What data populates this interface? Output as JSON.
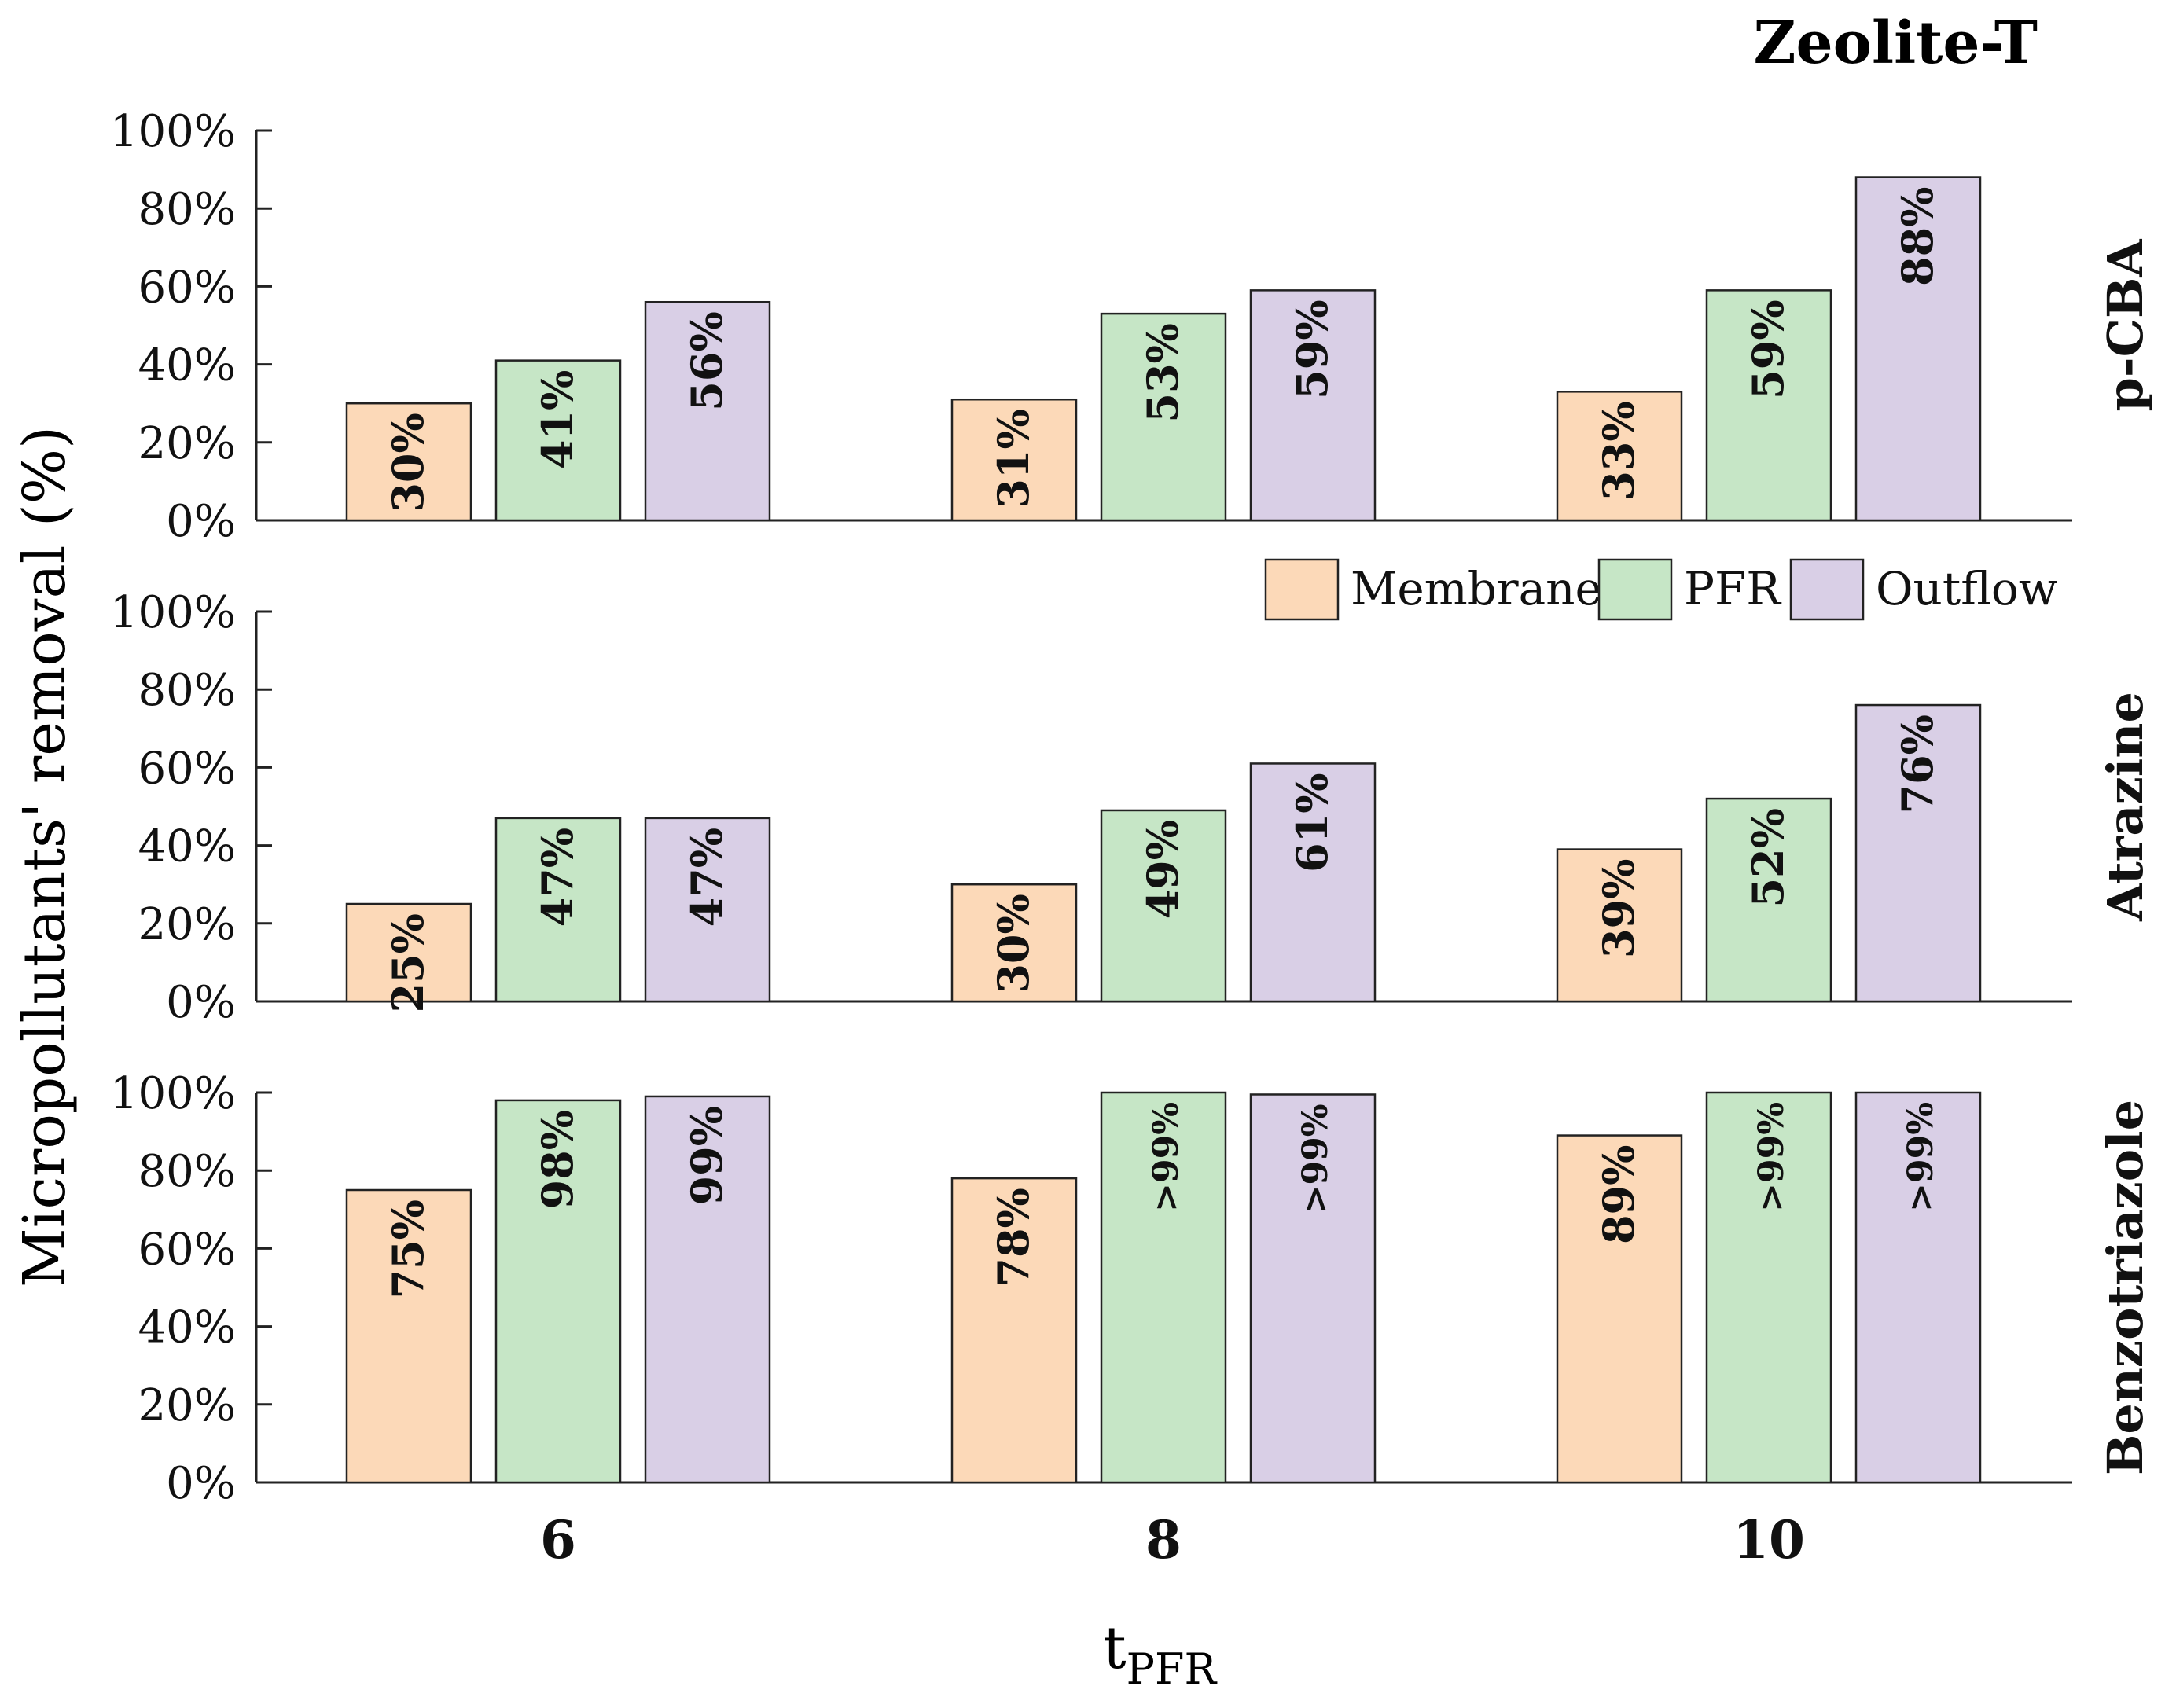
{
  "figure_title": "Zeolite-T",
  "y_axis_label": "Micropollutants' removal (%)",
  "x_axis_label": {
    "main": "t",
    "subscript": "PFR"
  },
  "colors": {
    "Membrane": "#fcd9b8",
    "PFR": "#c6e6c6",
    "Outflow": "#d9cfe6",
    "stroke": "#222222",
    "text": "#111111"
  },
  "chart_data": {
    "type": "bar",
    "title": "Zeolite-T",
    "xlabel": "tPFR",
    "ylabel": "Micropollutants' removal (%)",
    "categories": [
      "6",
      "8",
      "10"
    ],
    "ylim": [
      0,
      100
    ],
    "yticks": [
      "0%",
      "20%",
      "40%",
      "60%",
      "80%",
      "100%"
    ],
    "legend": {
      "placement": "below top panel, right",
      "entries": [
        "Membrane",
        "PFR",
        "Outflow"
      ]
    },
    "panels": [
      {
        "name": "p-CBA",
        "series": [
          {
            "name": "Membrane",
            "values": [
              30,
              31,
              33
            ],
            "labels": [
              "30%",
              "31%",
              "33%"
            ]
          },
          {
            "name": "PFR",
            "values": [
              41,
              53,
              59
            ],
            "labels": [
              "41%",
              "53%",
              "59%"
            ]
          },
          {
            "name": "Outflow",
            "values": [
              56,
              59,
              88
            ],
            "labels": [
              "56%",
              "59%",
              "88%"
            ]
          }
        ]
      },
      {
        "name": "Atrazine",
        "series": [
          {
            "name": "Membrane",
            "values": [
              25,
              30,
              39
            ],
            "labels": [
              "25%",
              "30%",
              "39%"
            ]
          },
          {
            "name": "PFR",
            "values": [
              47,
              49,
              52
            ],
            "labels": [
              "47%",
              "49%",
              "52%"
            ]
          },
          {
            "name": "Outflow",
            "values": [
              47,
              61,
              76
            ],
            "labels": [
              "47%",
              "61%",
              "76%"
            ]
          }
        ]
      },
      {
        "name": "Benzotriazole",
        "series": [
          {
            "name": "Membrane",
            "values": [
              75,
              78,
              89
            ],
            "labels": [
              "75%",
              "78%",
              "89%"
            ]
          },
          {
            "name": "PFR",
            "values": [
              98,
              100,
              100
            ],
            "labels": [
              "98%",
              ">99%",
              ">99%"
            ]
          },
          {
            "name": "Outflow",
            "values": [
              99,
              99.5,
              100
            ],
            "labels": [
              "99%",
              ">99%",
              ">99%"
            ]
          }
        ]
      }
    ]
  }
}
